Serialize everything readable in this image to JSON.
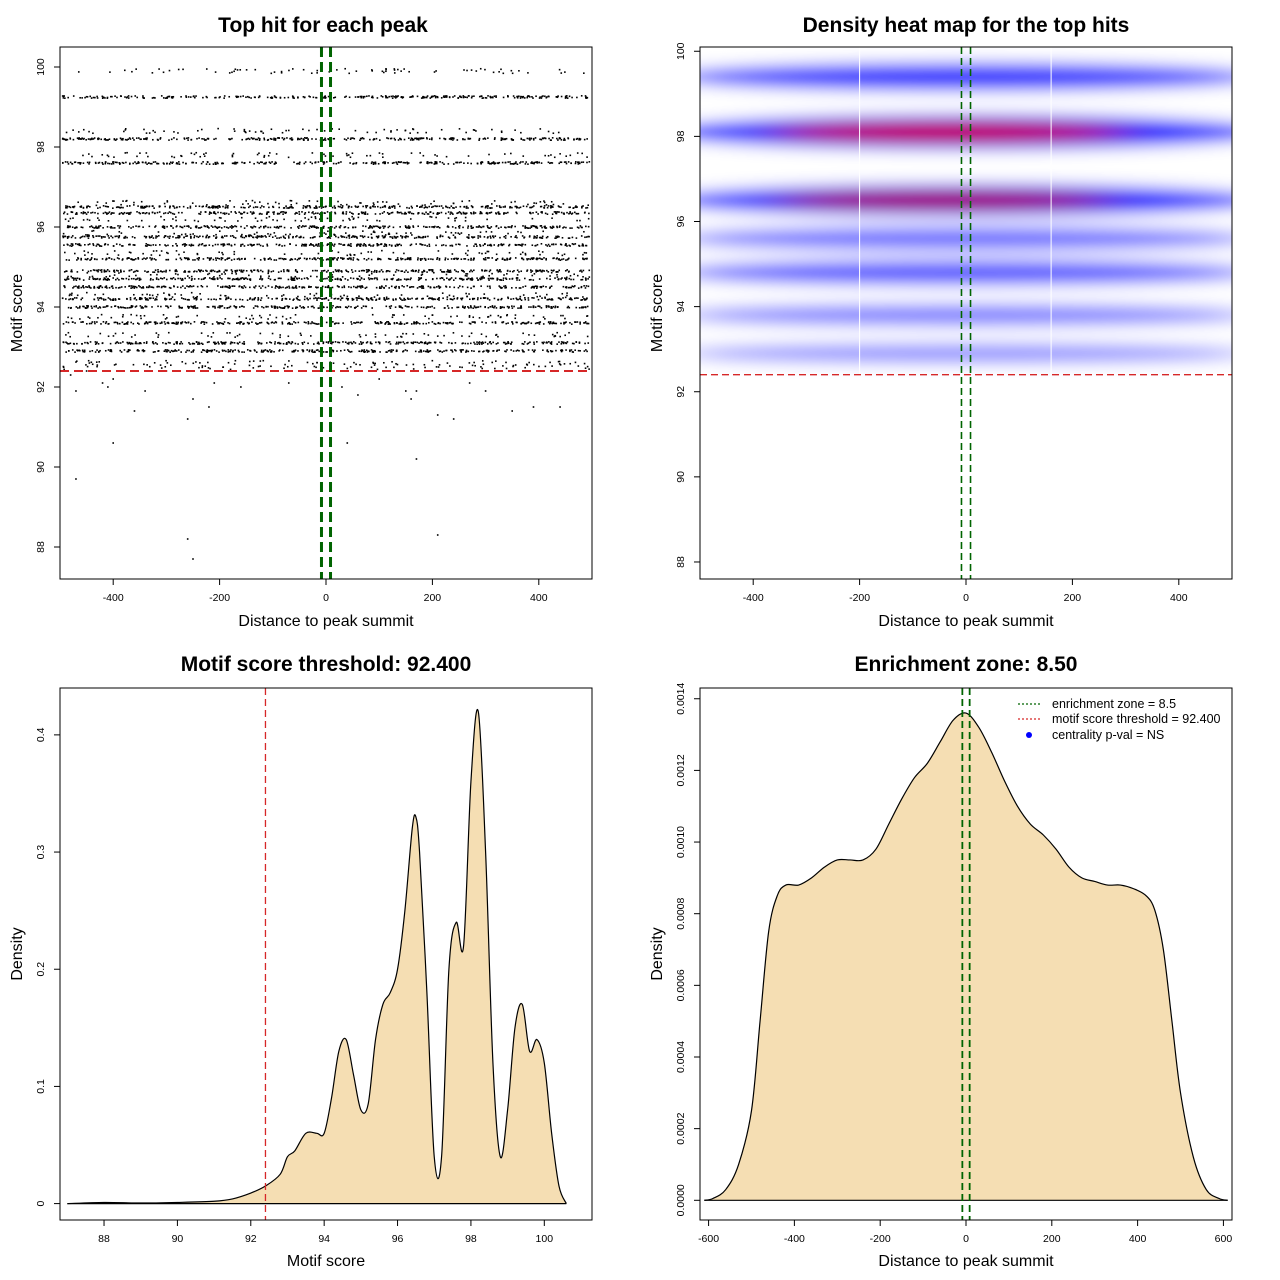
{
  "chart_data": [
    {
      "type": "scatter",
      "title": "Top hit for each peak",
      "xlabel": "Distance to peak summit",
      "ylabel": "Motif score",
      "xlim": [
        -500,
        500
      ],
      "ylim": [
        87.2,
        100.5
      ],
      "xticks": [
        -400,
        -200,
        0,
        200,
        400
      ],
      "yticks": [
        88,
        90,
        92,
        94,
        96,
        98,
        100
      ],
      "dense_score_levels": [
        99.25,
        98.2,
        97.6,
        96.5,
        96.35,
        96.0,
        95.75,
        95.55,
        95.2,
        94.9,
        94.7,
        94.5,
        94.2,
        94.0,
        93.6,
        93.1,
        92.9
      ],
      "sparse_score_levels": [
        99.9,
        98.4,
        97.8,
        96.6,
        96.2,
        95.85,
        95.35,
        94.8,
        94.3,
        93.75,
        93.3,
        92.6,
        92.5
      ],
      "outlier_points": [
        [
          -480,
          92.3
        ],
        [
          -470,
          91.9
        ],
        [
          -450,
          92.4
        ],
        [
          -420,
          92.1
        ],
        [
          -410,
          92.0
        ],
        [
          -400,
          92.2
        ],
        [
          -360,
          91.4
        ],
        [
          -340,
          91.9
        ],
        [
          -300,
          92.4
        ],
        [
          -260,
          91.2
        ],
        [
          -250,
          91.7
        ],
        [
          -220,
          91.5
        ],
        [
          -210,
          92.1
        ],
        [
          -160,
          92.0
        ],
        [
          -70,
          92.1
        ],
        [
          30,
          92.0
        ],
        [
          60,
          91.8
        ],
        [
          100,
          92.2
        ],
        [
          150,
          91.9
        ],
        [
          160,
          91.7
        ],
        [
          170,
          91.9
        ],
        [
          210,
          91.3
        ],
        [
          240,
          91.2
        ],
        [
          270,
          92.1
        ],
        [
          300,
          91.9
        ],
        [
          350,
          91.4
        ],
        [
          390,
          91.5
        ],
        [
          440,
          91.5
        ],
        [
          -400,
          90.6
        ],
        [
          -470,
          89.7
        ],
        [
          -260,
          88.2
        ],
        [
          -250,
          87.7
        ],
        [
          40,
          90.6
        ],
        [
          170,
          90.2
        ],
        [
          210,
          88.3
        ]
      ],
      "threshold": 92.4,
      "enrichment_zone": [
        -8.5,
        8.5
      ],
      "threshold_color": "#d62728",
      "zone_color": "#006400"
    },
    {
      "type": "heatmap",
      "title": "Density heat map for the top hits",
      "xlabel": "Distance to peak summit",
      "ylabel": "Motif score",
      "xlim": [
        -500,
        500
      ],
      "ylim": [
        87.6,
        100.1
      ],
      "xticks": [
        -400,
        -200,
        0,
        200,
        400
      ],
      "yticks": [
        88,
        90,
        92,
        94,
        96,
        98,
        100
      ],
      "density_bands": [
        {
          "score": 98.1,
          "intensity": 0.95,
          "peak_x": -30
        },
        {
          "score": 96.5,
          "intensity": 0.8,
          "peak_x": -40
        },
        {
          "score": 99.4,
          "intensity": 0.6,
          "peak_x": 0
        },
        {
          "score": 94.8,
          "intensity": 0.45,
          "peak_x": 0
        },
        {
          "score": 95.6,
          "intensity": 0.35,
          "peak_x": 0
        },
        {
          "score": 93.8,
          "intensity": 0.25,
          "peak_x": 0
        },
        {
          "score": 92.9,
          "intensity": 0.15,
          "peak_x": 0
        }
      ],
      "grid_x": [
        -200,
        160
      ],
      "threshold": 92.4,
      "enrichment_zone": [
        -8.5,
        8.5
      ],
      "colors": {
        "low": "#ffffff",
        "mid": "#0000ff",
        "high": "#ff0000"
      }
    },
    {
      "type": "area",
      "title": "Motif score threshold: 92.400",
      "xlabel": "Motif score",
      "ylabel": "Density",
      "xlim": [
        86.8,
        101.3
      ],
      "ylim": [
        -0.014,
        0.44
      ],
      "xticks": [
        88,
        90,
        92,
        94,
        96,
        98,
        100
      ],
      "yticks": [
        0.0,
        0.1,
        0.2,
        0.3,
        0.4
      ],
      "x": [
        87.0,
        88.0,
        89.0,
        90.0,
        91.0,
        91.5,
        92.0,
        92.4,
        92.8,
        93.0,
        93.2,
        93.5,
        93.8,
        94.0,
        94.2,
        94.4,
        94.6,
        94.8,
        95.0,
        95.2,
        95.4,
        95.6,
        95.8,
        96.0,
        96.2,
        96.4,
        96.5,
        96.6,
        96.8,
        97.0,
        97.2,
        97.4,
        97.6,
        97.8,
        98.0,
        98.2,
        98.4,
        98.6,
        98.8,
        99.0,
        99.2,
        99.4,
        99.6,
        99.8,
        100.0,
        100.2,
        100.4,
        100.6
      ],
      "y": [
        0.0,
        0.001,
        0.0005,
        0.001,
        0.002,
        0.004,
        0.009,
        0.015,
        0.025,
        0.04,
        0.045,
        0.06,
        0.06,
        0.06,
        0.09,
        0.13,
        0.14,
        0.11,
        0.08,
        0.085,
        0.14,
        0.17,
        0.18,
        0.2,
        0.25,
        0.32,
        0.33,
        0.3,
        0.18,
        0.04,
        0.04,
        0.2,
        0.24,
        0.22,
        0.36,
        0.42,
        0.3,
        0.12,
        0.04,
        0.08,
        0.15,
        0.17,
        0.13,
        0.14,
        0.12,
        0.06,
        0.015,
        0.0
      ],
      "threshold": 92.4,
      "fill_color": "#f5deb3",
      "threshold_color": "#d62728"
    },
    {
      "type": "area",
      "title": "Enrichment zone: 8.50",
      "xlabel": "Distance to peak summit",
      "ylabel": "Density",
      "xlim": [
        -620,
        620
      ],
      "ylim": [
        -5.5e-05,
        0.00143
      ],
      "xticks": [
        -600,
        -400,
        -200,
        0,
        200,
        400,
        600
      ],
      "yticks": [
        0.0,
        0.0002,
        0.0004,
        0.0006,
        0.0008,
        0.001,
        0.0012,
        0.0014
      ],
      "ytick_labels": [
        "0.0000",
        "0.0002",
        "0.0004",
        "0.0006",
        "0.0008",
        "0.0010",
        "0.0012",
        "0.0014"
      ],
      "x": [
        -610,
        -590,
        -560,
        -530,
        -500,
        -480,
        -460,
        -440,
        -420,
        -390,
        -360,
        -330,
        -300,
        -270,
        -240,
        -210,
        -180,
        -150,
        -120,
        -90,
        -60,
        -30,
        0,
        30,
        60,
        90,
        120,
        150,
        180,
        210,
        240,
        270,
        300,
        330,
        360,
        390,
        420,
        440,
        460,
        480,
        500,
        530,
        560,
        590,
        610
      ],
      "y": [
        0.0,
        5e-06,
        3e-05,
        0.0001,
        0.00025,
        0.0005,
        0.00075,
        0.00085,
        0.00088,
        0.00088,
        0.0009,
        0.00093,
        0.00095,
        0.00095,
        0.00095,
        0.00098,
        0.00105,
        0.00112,
        0.00118,
        0.00122,
        0.00128,
        0.00134,
        0.00136,
        0.00132,
        0.00125,
        0.00117,
        0.0011,
        0.00105,
        0.00102,
        0.00098,
        0.00093,
        0.0009,
        0.00089,
        0.00088,
        0.00088,
        0.00087,
        0.00085,
        0.00081,
        0.0007,
        0.0005,
        0.0003,
        0.00012,
        3e-05,
        5e-06,
        0.0
      ],
      "enrichment_zone": [
        -8.5,
        8.5
      ],
      "fill_color": "#f5deb3",
      "zone_color": "#006400",
      "legend": {
        "position": "top-right",
        "items": [
          {
            "label": "enrichment zone = 8.5",
            "style": "dotted",
            "color": "#006400"
          },
          {
            "label": "motif score threshold = 92.400",
            "style": "dotted",
            "color": "#d62728"
          },
          {
            "label": "centrality p-val = NS",
            "style": "point",
            "color": "#0000ff"
          }
        ]
      }
    }
  ]
}
